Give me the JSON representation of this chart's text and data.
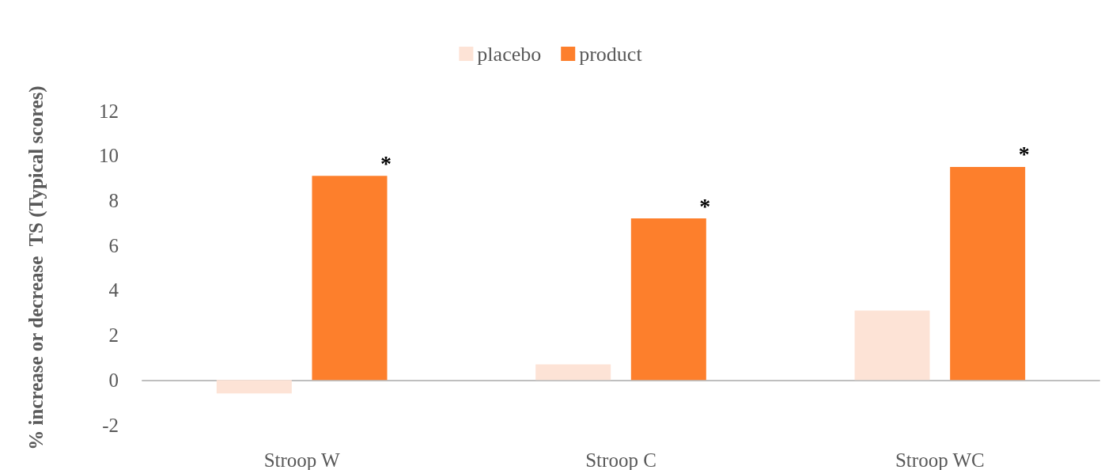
{
  "chart_data": {
    "type": "bar",
    "ylabel": "% increase or decrease  TS (Typical scores)",
    "categories": [
      "Stroop W",
      "Stroop C",
      "Stroop WC"
    ],
    "series": [
      {
        "name": "placebo",
        "color": "#fde3d6",
        "values": [
          -0.6,
          0.7,
          3.1
        ]
      },
      {
        "name": "product",
        "color": "#fd7f2c",
        "values": [
          9.1,
          7.2,
          9.5
        ]
      }
    ],
    "ylim": [
      -2,
      12
    ],
    "yticks": [
      -2,
      0,
      2,
      4,
      6,
      8,
      10,
      12
    ],
    "legend": "top",
    "annotations": [
      "*",
      "*",
      "*"
    ]
  }
}
